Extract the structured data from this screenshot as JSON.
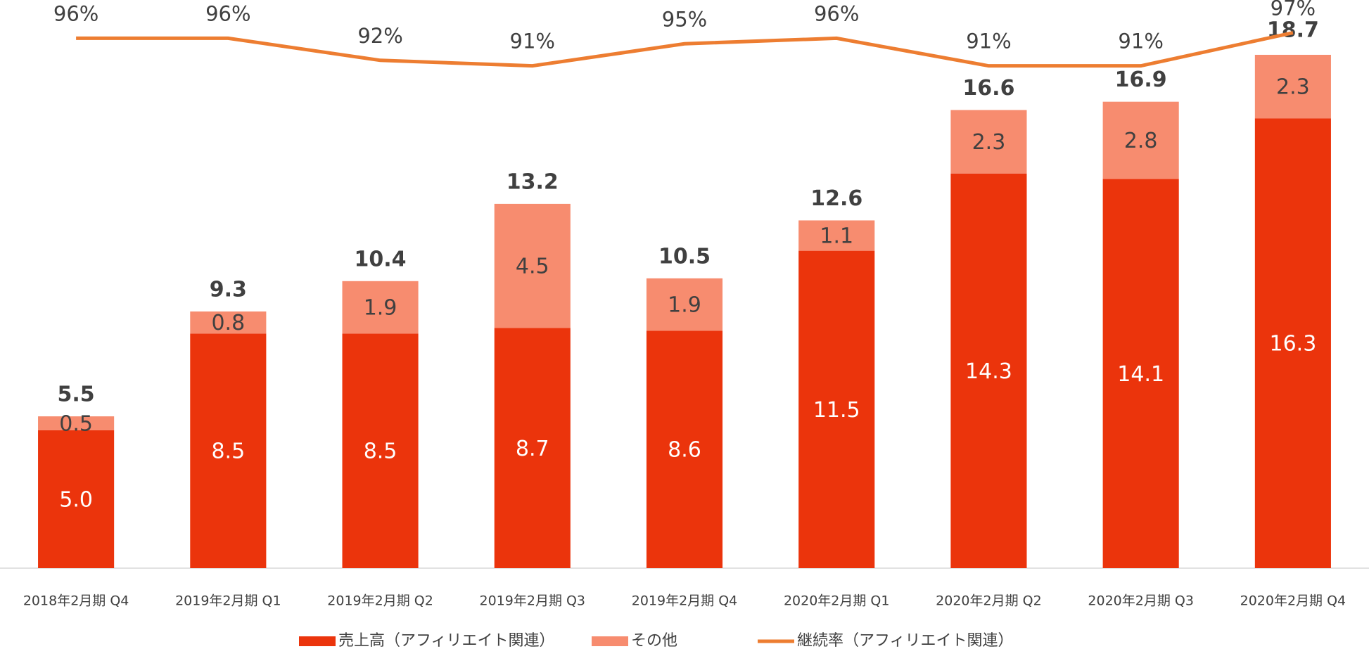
{
  "chart_data": {
    "type": "bar",
    "stacked": true,
    "categories": [
      "2018年2月期 Q4",
      "2019年2月期 Q1",
      "2019年2月期 Q2",
      "2019年2月期 Q3",
      "2019年2月期 Q4",
      "2020年2月期 Q1",
      "2020年2月期 Q2",
      "2020年2月期 Q3",
      "2020年2月期 Q4"
    ],
    "series": [
      {
        "name": "売上高（アフィリエイト関連）",
        "color": "#eb340c",
        "label_color": "#ffffff",
        "values": [
          5.0,
          8.5,
          8.5,
          8.7,
          8.6,
          11.5,
          14.3,
          14.1,
          16.3
        ],
        "value_labels": [
          "5.0",
          "8.5",
          "8.5",
          "8.7",
          "8.6",
          "11.5",
          "14.3",
          "14.1",
          "16.3"
        ]
      },
      {
        "name": "その他",
        "color": "#f78c6f",
        "label_color": "#404040",
        "values": [
          0.5,
          0.8,
          1.9,
          4.5,
          1.9,
          1.1,
          2.3,
          2.8,
          2.3
        ],
        "value_labels": [
          "0.5",
          "0.8",
          "1.9",
          "4.5",
          "1.9",
          "1.1",
          "2.3",
          "2.8",
          "2.3"
        ]
      },
      {
        "name": "継続率（アフィリエイト関連）",
        "color": "#ed7d31",
        "type": "line",
        "axis": "y2",
        "values": [
          96,
          96,
          92,
          91,
          95,
          96,
          91,
          91,
          97
        ],
        "value_labels": [
          "96%",
          "96%",
          "92%",
          "91%",
          "95%",
          "96%",
          "91%",
          "91%",
          "97%"
        ]
      }
    ],
    "totals": [
      5.5,
      9.3,
      10.4,
      13.2,
      10.5,
      12.6,
      16.6,
      16.9,
      18.7
    ],
    "ylim": [
      0,
      20
    ],
    "y2lim": [
      0,
      100
    ],
    "grid": false
  }
}
